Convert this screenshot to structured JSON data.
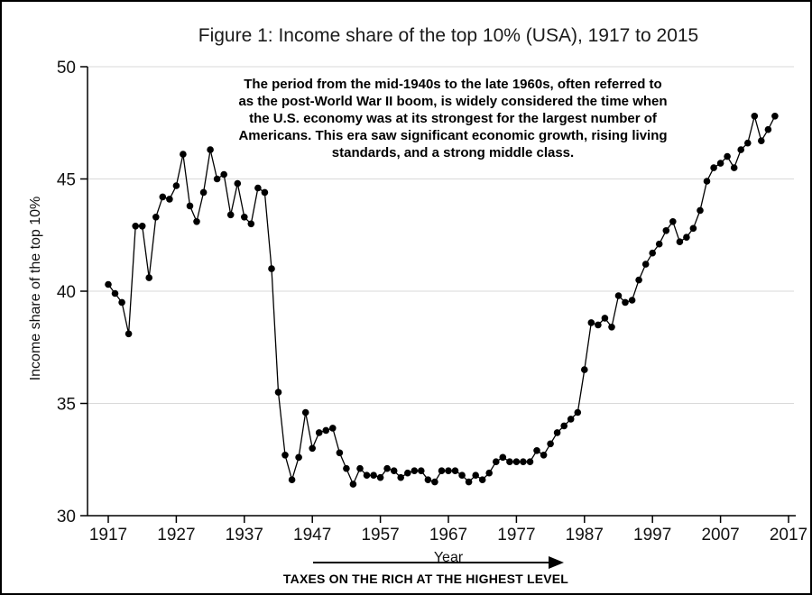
{
  "figure": {
    "title": "Figure 1: Income share of the top 10% (USA), 1917 to 2015",
    "annotation": "The period from the mid-1940s to the late 1960s, often referred to\nas the post-World War II boom, is widely considered the time when\nthe U.S. economy was at its strongest for the largest number of\nAmericans. This era saw significant economic growth, rising living\nstandards, and a strong middle class.",
    "y_axis_title": "Income share of the top 10%",
    "x_axis_title": "Year",
    "arrow_label": "TAXES ON THE RICH AT THE HIGHEST LEVEL"
  },
  "chart_data": {
    "type": "line",
    "title": "Figure 1: Income share of the top 10% (USA), 1917 to 2015",
    "xlabel": "Year",
    "ylabel": "Income share of the top 10%",
    "xlim": [
      1917,
      2017
    ],
    "ylim": [
      30,
      50
    ],
    "x_ticks": [
      1917,
      1927,
      1937,
      1947,
      1957,
      1967,
      1977,
      1987,
      1997,
      2007,
      2017
    ],
    "y_ticks": [
      30,
      35,
      40,
      45,
      50
    ],
    "grid": "horizontal-only",
    "legend": "none",
    "marker": "filled-circle",
    "line_color": "#000000",
    "gridline_color": "#d9d9d9",
    "annotation": "The period from the mid-1940s to the late 1960s, often referred to as the post-World War II boom, is widely considered the time when the U.S. economy was at its strongest for the largest number of Americans. This era saw significant economic growth, rising living standards, and a strong middle class.",
    "arrow_annotation": "TAXES ON THE RICH AT THE HIGHEST LEVEL",
    "series": [
      {
        "name": "Income share of the top 10%",
        "x": [
          1917,
          1918,
          1919,
          1920,
          1921,
          1922,
          1923,
          1924,
          1925,
          1926,
          1927,
          1928,
          1929,
          1930,
          1931,
          1932,
          1933,
          1934,
          1935,
          1936,
          1937,
          1938,
          1939,
          1940,
          1941,
          1942,
          1943,
          1944,
          1945,
          1946,
          1947,
          1948,
          1949,
          1950,
          1951,
          1952,
          1953,
          1954,
          1955,
          1956,
          1957,
          1958,
          1959,
          1960,
          1961,
          1962,
          1963,
          1964,
          1965,
          1966,
          1967,
          1968,
          1969,
          1970,
          1971,
          1972,
          1973,
          1974,
          1975,
          1976,
          1977,
          1978,
          1979,
          1980,
          1981,
          1982,
          1983,
          1984,
          1985,
          1986,
          1987,
          1988,
          1989,
          1990,
          1991,
          1992,
          1993,
          1994,
          1995,
          1996,
          1997,
          1998,
          1999,
          2000,
          2001,
          2002,
          2003,
          2004,
          2005,
          2006,
          2007,
          2008,
          2009,
          2010,
          2011,
          2012,
          2013,
          2014,
          2015
        ],
        "y": [
          40.3,
          39.9,
          39.5,
          38.1,
          42.9,
          42.9,
          40.6,
          43.3,
          44.2,
          44.1,
          44.7,
          46.1,
          43.8,
          43.1,
          44.4,
          46.3,
          45.0,
          45.2,
          43.4,
          44.8,
          43.3,
          43.0,
          44.6,
          44.4,
          41.0,
          35.5,
          32.7,
          31.6,
          32.6,
          34.6,
          33.0,
          33.7,
          33.8,
          33.9,
          32.8,
          32.1,
          31.4,
          32.1,
          31.8,
          31.8,
          31.7,
          32.1,
          32.0,
          31.7,
          31.9,
          32.0,
          32.0,
          31.6,
          31.5,
          32.0,
          32.0,
          32.0,
          31.8,
          31.5,
          31.8,
          31.6,
          31.9,
          32.4,
          32.6,
          32.4,
          32.4,
          32.4,
          32.4,
          32.9,
          32.7,
          33.2,
          33.7,
          34.0,
          34.3,
          34.6,
          36.5,
          38.6,
          38.5,
          38.8,
          38.4,
          39.8,
          39.5,
          39.6,
          40.5,
          41.2,
          41.7,
          42.1,
          42.7,
          43.1,
          42.2,
          42.4,
          42.8,
          43.6,
          44.9,
          45.5,
          45.7,
          46.0,
          45.5,
          46.3,
          46.6,
          47.8,
          46.7,
          47.2,
          47.8
        ]
      }
    ]
  }
}
